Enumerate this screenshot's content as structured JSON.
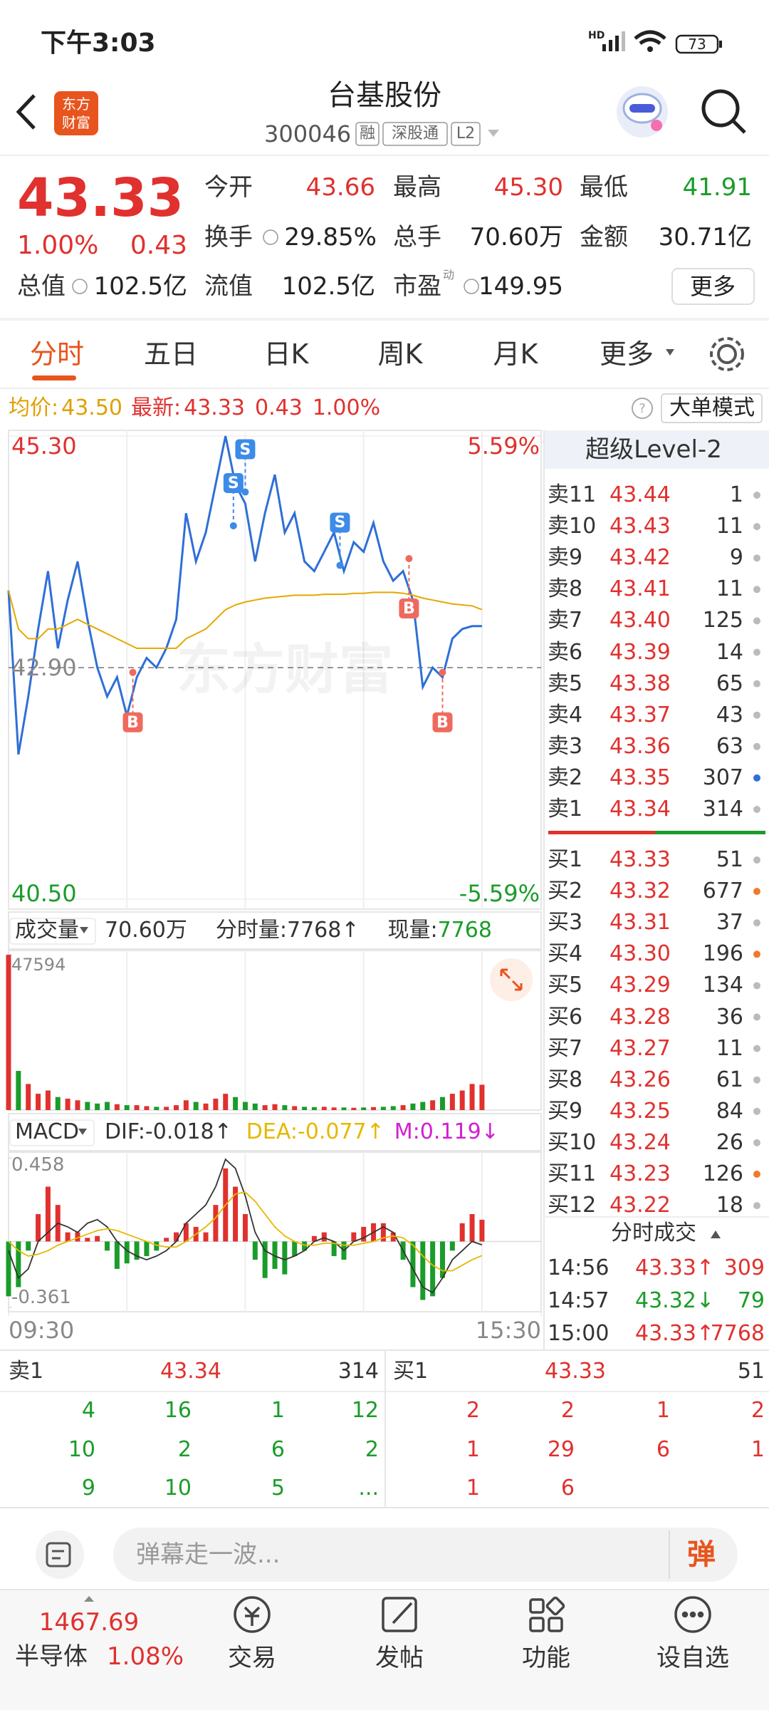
{
  "status_bar": {
    "time": "下午3:03",
    "network": "HD",
    "battery": "73"
  },
  "header": {
    "title": "台基股份",
    "code": "300046",
    "badges": [
      "融",
      "深股通",
      "L2"
    ],
    "logo": [
      "东方",
      "财富"
    ]
  },
  "quote": {
    "price": "43.33",
    "change_pct": "1.00%",
    "change": "0.43",
    "more": "更多",
    "stats": [
      {
        "label": "今开",
        "value": "43.66",
        "color": "#e0312e"
      },
      {
        "label": "最高",
        "value": "45.30",
        "color": "#e0312e"
      },
      {
        "label": "最低",
        "value": "41.91",
        "color": "#1a9c2a"
      },
      {
        "label": "换手",
        "value": "29.85%",
        "color": "#222222"
      },
      {
        "label": "总手",
        "value": "70.60万",
        "color": "#222222"
      },
      {
        "label": "金额",
        "value": "30.71亿",
        "color": "#222222"
      },
      {
        "label": "总值",
        "value": "102.5亿",
        "color": "#222222"
      },
      {
        "label": "流值",
        "value": "102.5亿",
        "color": "#222222"
      },
      {
        "label": "市盈",
        "sup": "动",
        "value": "149.95",
        "color": "#222222"
      }
    ]
  },
  "tabs": {
    "items": [
      "分时",
      "五日",
      "日K",
      "周K",
      "月K",
      "更多"
    ],
    "active": 0
  },
  "info_bar": {
    "avg_label": "均价:",
    "avg": "43.50",
    "latest_label": "最新:",
    "latest": "43.33",
    "change": "0.43",
    "change_pct": "1.00%",
    "mode": "大单模式"
  },
  "price_chart": {
    "type": "line",
    "watermark": "东方财富",
    "x": [
      0,
      5,
      10,
      15,
      20,
      25,
      30,
      35,
      40,
      45,
      50,
      55,
      60,
      65,
      70,
      75,
      80,
      85,
      90,
      95,
      100,
      105,
      110,
      115,
      120,
      125,
      130,
      135,
      140,
      145,
      150,
      155,
      160,
      165,
      170,
      175,
      180,
      185,
      190,
      195,
      200,
      205,
      210,
      215,
      220,
      225,
      230,
      235,
      240
    ],
    "series": [
      {
        "color": "#2f6fd6",
        "values": [
          43.7,
          42.0,
          42.6,
          43.3,
          43.9,
          43.1,
          43.6,
          44.0,
          43.4,
          42.9,
          42.6,
          42.8,
          42.4,
          42.8,
          43.0,
          42.9,
          43.1,
          43.4,
          44.5,
          44.0,
          44.3,
          44.8,
          45.3,
          44.8,
          44.6,
          44.0,
          44.5,
          44.9,
          44.3,
          44.5,
          44.0,
          43.9,
          44.1,
          44.3,
          43.9,
          44.2,
          44.1,
          44.4,
          44.0,
          43.8,
          43.9,
          43.6,
          42.7,
          42.9,
          42.8,
          43.2,
          43.3,
          43.33,
          43.33
        ]
      },
      {
        "color": "#e6a700",
        "values": [
          43.7,
          43.3,
          43.2,
          43.2,
          43.3,
          43.3,
          43.35,
          43.4,
          43.35,
          43.3,
          43.25,
          43.2,
          43.15,
          43.1,
          43.1,
          43.1,
          43.1,
          43.1,
          43.2,
          43.25,
          43.3,
          43.4,
          43.5,
          43.55,
          43.58,
          43.6,
          43.62,
          43.63,
          43.64,
          43.65,
          43.65,
          43.65,
          43.66,
          43.66,
          43.66,
          43.67,
          43.67,
          43.68,
          43.68,
          43.68,
          43.67,
          43.65,
          43.62,
          43.6,
          43.58,
          43.56,
          43.55,
          43.54,
          43.5
        ]
      }
    ],
    "xlim": [
      0,
      270
    ],
    "xticks": [
      {
        "value": 0,
        "label": "09:30"
      },
      {
        "value": 270,
        "label": "15:30"
      }
    ],
    "xgrid": [
      60,
      120,
      180,
      240
    ],
    "ylim": [
      40.5,
      45.3
    ],
    "yticks": [
      {
        "value": 45.3,
        "label": "45.30"
      },
      {
        "value": 42.9,
        "label": "42.90"
      },
      {
        "value": 40.5,
        "label": "40.50"
      }
    ],
    "y2lim": [
      -5.59,
      5.59
    ],
    "y2ticks": [
      {
        "value": 5.59,
        "label": "5.59%"
      },
      {
        "value": -5.59,
        "label": "-5.59%"
      }
    ],
    "markers": [
      {
        "label": "S",
        "x": 114,
        "y": 44.37,
        "color": "#3d8be8"
      },
      {
        "label": "S",
        "x": 120,
        "y": 44.72,
        "color": "#3d8be8"
      },
      {
        "label": "S",
        "x": 168,
        "y": 43.96,
        "color": "#3d8be8"
      },
      {
        "label": "B",
        "x": 63,
        "y": 42.85,
        "color": "#ef6a5e"
      },
      {
        "label": "B",
        "x": 203,
        "y": 44.03,
        "color": "#ef6a5e"
      },
      {
        "label": "B",
        "x": 220,
        "y": 42.85,
        "color": "#ef6a5e"
      }
    ]
  },
  "volume_chart": {
    "type": "bar",
    "label": "成交量",
    "total": "70.60万",
    "period_label": "分时量:",
    "period": "7768↑",
    "current_label": "现量:",
    "current": "7768",
    "up_color": "#e0312e",
    "down_color": "#1a9c2a",
    "ylim": [
      0,
      47594
    ],
    "yticks": [
      47594
    ],
    "values": [
      47594,
      12000,
      8000,
      5000,
      6000,
      4000,
      3500,
      3000,
      2500,
      2000,
      2500,
      1800,
      1500,
      1500,
      1200,
      1000,
      1000,
      1500,
      3000,
      2500,
      2000,
      3500,
      5000,
      4000,
      2500,
      2000,
      1500,
      1800,
      1500,
      1200,
      1000,
      900,
      1000,
      800,
      800,
      700,
      800,
      900,
      1000,
      1200,
      1500,
      2000,
      2500,
      3000,
      4000,
      5000,
      6000,
      8000,
      7768
    ]
  },
  "macd_chart": {
    "type": "bar",
    "label": "MACD",
    "dif": "DIF:-0.018↑",
    "dea": "DEA:-0.077↑",
    "m": "M:0.119↓",
    "up_color": "#e0312e",
    "down_color": "#1a9c2a",
    "ylim": [
      -0.361,
      0.458
    ],
    "yticks": [
      0.458,
      -0.361
    ],
    "values": [
      -0.3,
      -0.25,
      -0.05,
      0.15,
      0.3,
      0.2,
      0.05,
      0.05,
      0.02,
      0.03,
      -0.05,
      -0.15,
      -0.12,
      -0.1,
      -0.08,
      -0.05,
      0.02,
      0.05,
      0.1,
      0.08,
      0.05,
      0.2,
      0.4,
      0.3,
      0.15,
      -0.1,
      -0.2,
      -0.15,
      -0.18,
      -0.08,
      -0.05,
      0.03,
      0.05,
      -0.08,
      -0.1,
      0.05,
      0.08,
      0.1,
      0.1,
      0.05,
      -0.1,
      -0.25,
      -0.32,
      -0.3,
      -0.2,
      -0.05,
      0.1,
      0.15,
      0.119
    ],
    "series": [
      {
        "color": "#333333",
        "values": [
          -0.05,
          -0.2,
          -0.15,
          0.0,
          0.05,
          0.1,
          0.08,
          0.05,
          0.1,
          0.12,
          0.08,
          0.0,
          -0.05,
          -0.08,
          -0.1,
          -0.08,
          -0.05,
          0.0,
          0.1,
          0.15,
          0.2,
          0.3,
          0.45,
          0.4,
          0.25,
          0.05,
          -0.05,
          -0.08,
          -0.1,
          -0.08,
          -0.05,
          0.0,
          0.02,
          0.0,
          -0.05,
          0.0,
          0.02,
          0.05,
          0.08,
          0.05,
          -0.05,
          -0.15,
          -0.25,
          -0.28,
          -0.2,
          -0.1,
          -0.05,
          0.0,
          -0.018
        ]
      },
      {
        "color": "#e6b800",
        "values": [
          0.0,
          -0.05,
          -0.08,
          -0.07,
          -0.05,
          -0.02,
          0.0,
          0.02,
          0.04,
          0.06,
          0.07,
          0.06,
          0.04,
          0.02,
          0.0,
          -0.02,
          -0.03,
          -0.03,
          0.0,
          0.04,
          0.08,
          0.13,
          0.2,
          0.26,
          0.27,
          0.22,
          0.15,
          0.08,
          0.03,
          0.0,
          -0.02,
          -0.02,
          -0.01,
          -0.01,
          -0.02,
          -0.02,
          -0.01,
          0.0,
          0.02,
          0.03,
          0.02,
          -0.02,
          -0.08,
          -0.13,
          -0.16,
          -0.16,
          -0.13,
          -0.1,
          -0.077
        ]
      }
    ]
  },
  "level2": {
    "title": "超级Level-2",
    "asks": [
      {
        "label": "卖11",
        "price": "43.44",
        "qty": "1",
        "dot": "#bbbbbb"
      },
      {
        "label": "卖10",
        "price": "43.43",
        "qty": "11",
        "dot": "#bbbbbb"
      },
      {
        "label": "卖9",
        "price": "43.42",
        "qty": "9",
        "dot": "#bbbbbb"
      },
      {
        "label": "卖8",
        "price": "43.41",
        "qty": "11",
        "dot": "#bbbbbb"
      },
      {
        "label": "卖7",
        "price": "43.40",
        "qty": "125",
        "dot": "#bbbbbb"
      },
      {
        "label": "卖6",
        "price": "43.39",
        "qty": "14",
        "dot": "#bbbbbb"
      },
      {
        "label": "卖5",
        "price": "43.38",
        "qty": "65",
        "dot": "#bbbbbb"
      },
      {
        "label": "卖4",
        "price": "43.37",
        "qty": "43",
        "dot": "#bbbbbb"
      },
      {
        "label": "卖3",
        "price": "43.36",
        "qty": "63",
        "dot": "#bbbbbb"
      },
      {
        "label": "卖2",
        "price": "43.35",
        "qty": "307",
        "dot": "#2f6fd6"
      },
      {
        "label": "卖1",
        "price": "43.34",
        "qty": "314",
        "dot": "#bbbbbb"
      }
    ],
    "bids": [
      {
        "label": "买1",
        "price": "43.33",
        "qty": "51",
        "dot": "#bbbbbb"
      },
      {
        "label": "买2",
        "price": "43.32",
        "qty": "677",
        "dot": "#f07a2a"
      },
      {
        "label": "买3",
        "price": "43.31",
        "qty": "37",
        "dot": "#bbbbbb"
      },
      {
        "label": "买4",
        "price": "43.30",
        "qty": "196",
        "dot": "#f07a2a"
      },
      {
        "label": "买5",
        "price": "43.29",
        "qty": "134",
        "dot": "#bbbbbb"
      },
      {
        "label": "买6",
        "price": "43.28",
        "qty": "36",
        "dot": "#bbbbbb"
      },
      {
        "label": "买7",
        "price": "43.27",
        "qty": "11",
        "dot": "#bbbbbb"
      },
      {
        "label": "买8",
        "price": "43.26",
        "qty": "61",
        "dot": "#bbbbbb"
      },
      {
        "label": "买9",
        "price": "43.25",
        "qty": "84",
        "dot": "#bbbbbb"
      },
      {
        "label": "买10",
        "price": "43.24",
        "qty": "26",
        "dot": "#bbbbbb"
      },
      {
        "label": "买11",
        "price": "43.23",
        "qty": "126",
        "dot": "#f07a2a"
      },
      {
        "label": "买12",
        "price": "43.22",
        "qty": "18",
        "dot": "#bbbbbb"
      }
    ]
  },
  "trades": {
    "title": "分时成交",
    "rows": [
      {
        "time": "14:56",
        "price": "43.33↑",
        "vol": "309",
        "color": "#e0312e"
      },
      {
        "time": "14:57",
        "price": "43.32↓",
        "vol": "79",
        "color": "#1a9c2a"
      },
      {
        "time": "15:00",
        "price": "43.33↑",
        "vol": "7768",
        "color": "#e0312e"
      }
    ]
  },
  "queue": {
    "ask": {
      "label": "卖1",
      "price": "43.34",
      "qty": "314",
      "orders": [
        "4",
        "16",
        "1",
        "12",
        "10",
        "2",
        "6",
        "2",
        "9",
        "10",
        "5",
        "..."
      ],
      "color": "#1a9c2a"
    },
    "bid": {
      "label": "买1",
      "price": "43.33",
      "qty": "51",
      "orders": [
        "2",
        "2",
        "1",
        "2",
        "1",
        "29",
        "6",
        "1",
        "1",
        "6"
      ],
      "color": "#e0312e"
    }
  },
  "comment": {
    "placeholder": "弹幕走一波...",
    "button": "弹"
  },
  "index": {
    "value": "1467.69",
    "name": "半导体",
    "change_pct": "1.08%"
  },
  "nav": [
    "交易",
    "发帖",
    "功能",
    "设自选"
  ]
}
